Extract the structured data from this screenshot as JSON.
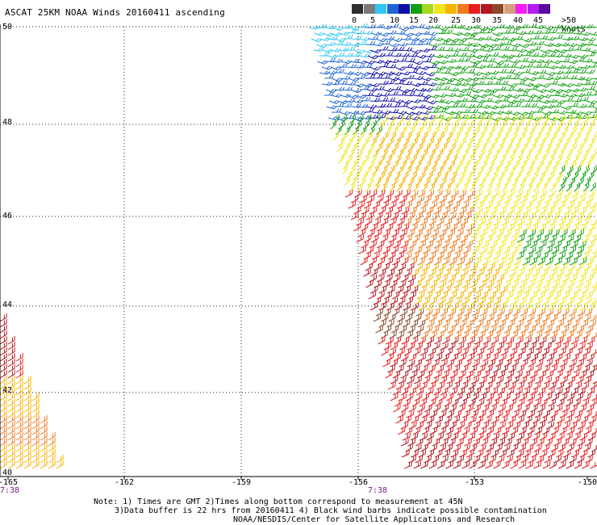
{
  "title": "ASCAT 25KM NOAA Winds 20160411 ascending",
  "legend": {
    "colors": [
      "#2e2e2e",
      "#7a7a7a",
      "#2ec7f5",
      "#1e64d6",
      "#1010a8",
      "#12a012",
      "#a6d61e",
      "#f0e61e",
      "#f5b400",
      "#f07a1e",
      "#e61e1e",
      "#b5161e",
      "#8a4a2a",
      "#d4a07a",
      "#f51ef5",
      "#b41ef0",
      "#5a0aa0"
    ],
    "tick_labels": [
      "0",
      "5",
      "10",
      "15",
      "20",
      "25",
      "30",
      "35",
      "40",
      "45",
      ">50 knots"
    ]
  },
  "axes": {
    "lat_labels": [
      "50",
      "48",
      "46",
      "44",
      "42",
      "40"
    ],
    "lon_labels": [
      "-165",
      "-162",
      "-159",
      "-156",
      "-153",
      "-150"
    ]
  },
  "time_labels": [
    "7:38",
    "7:38"
  ],
  "notes": {
    "line1": "Note: 1) Times are GMT 2)Times along bottom correspond to measurement at 45N",
    "line2": "3)Data buffer is 22 hrs from 20160411 4) Black wind barbs indicate possible contamination",
    "line3": "NOAA/NESDIS/Center for Satellite Applications and Research"
  }
}
